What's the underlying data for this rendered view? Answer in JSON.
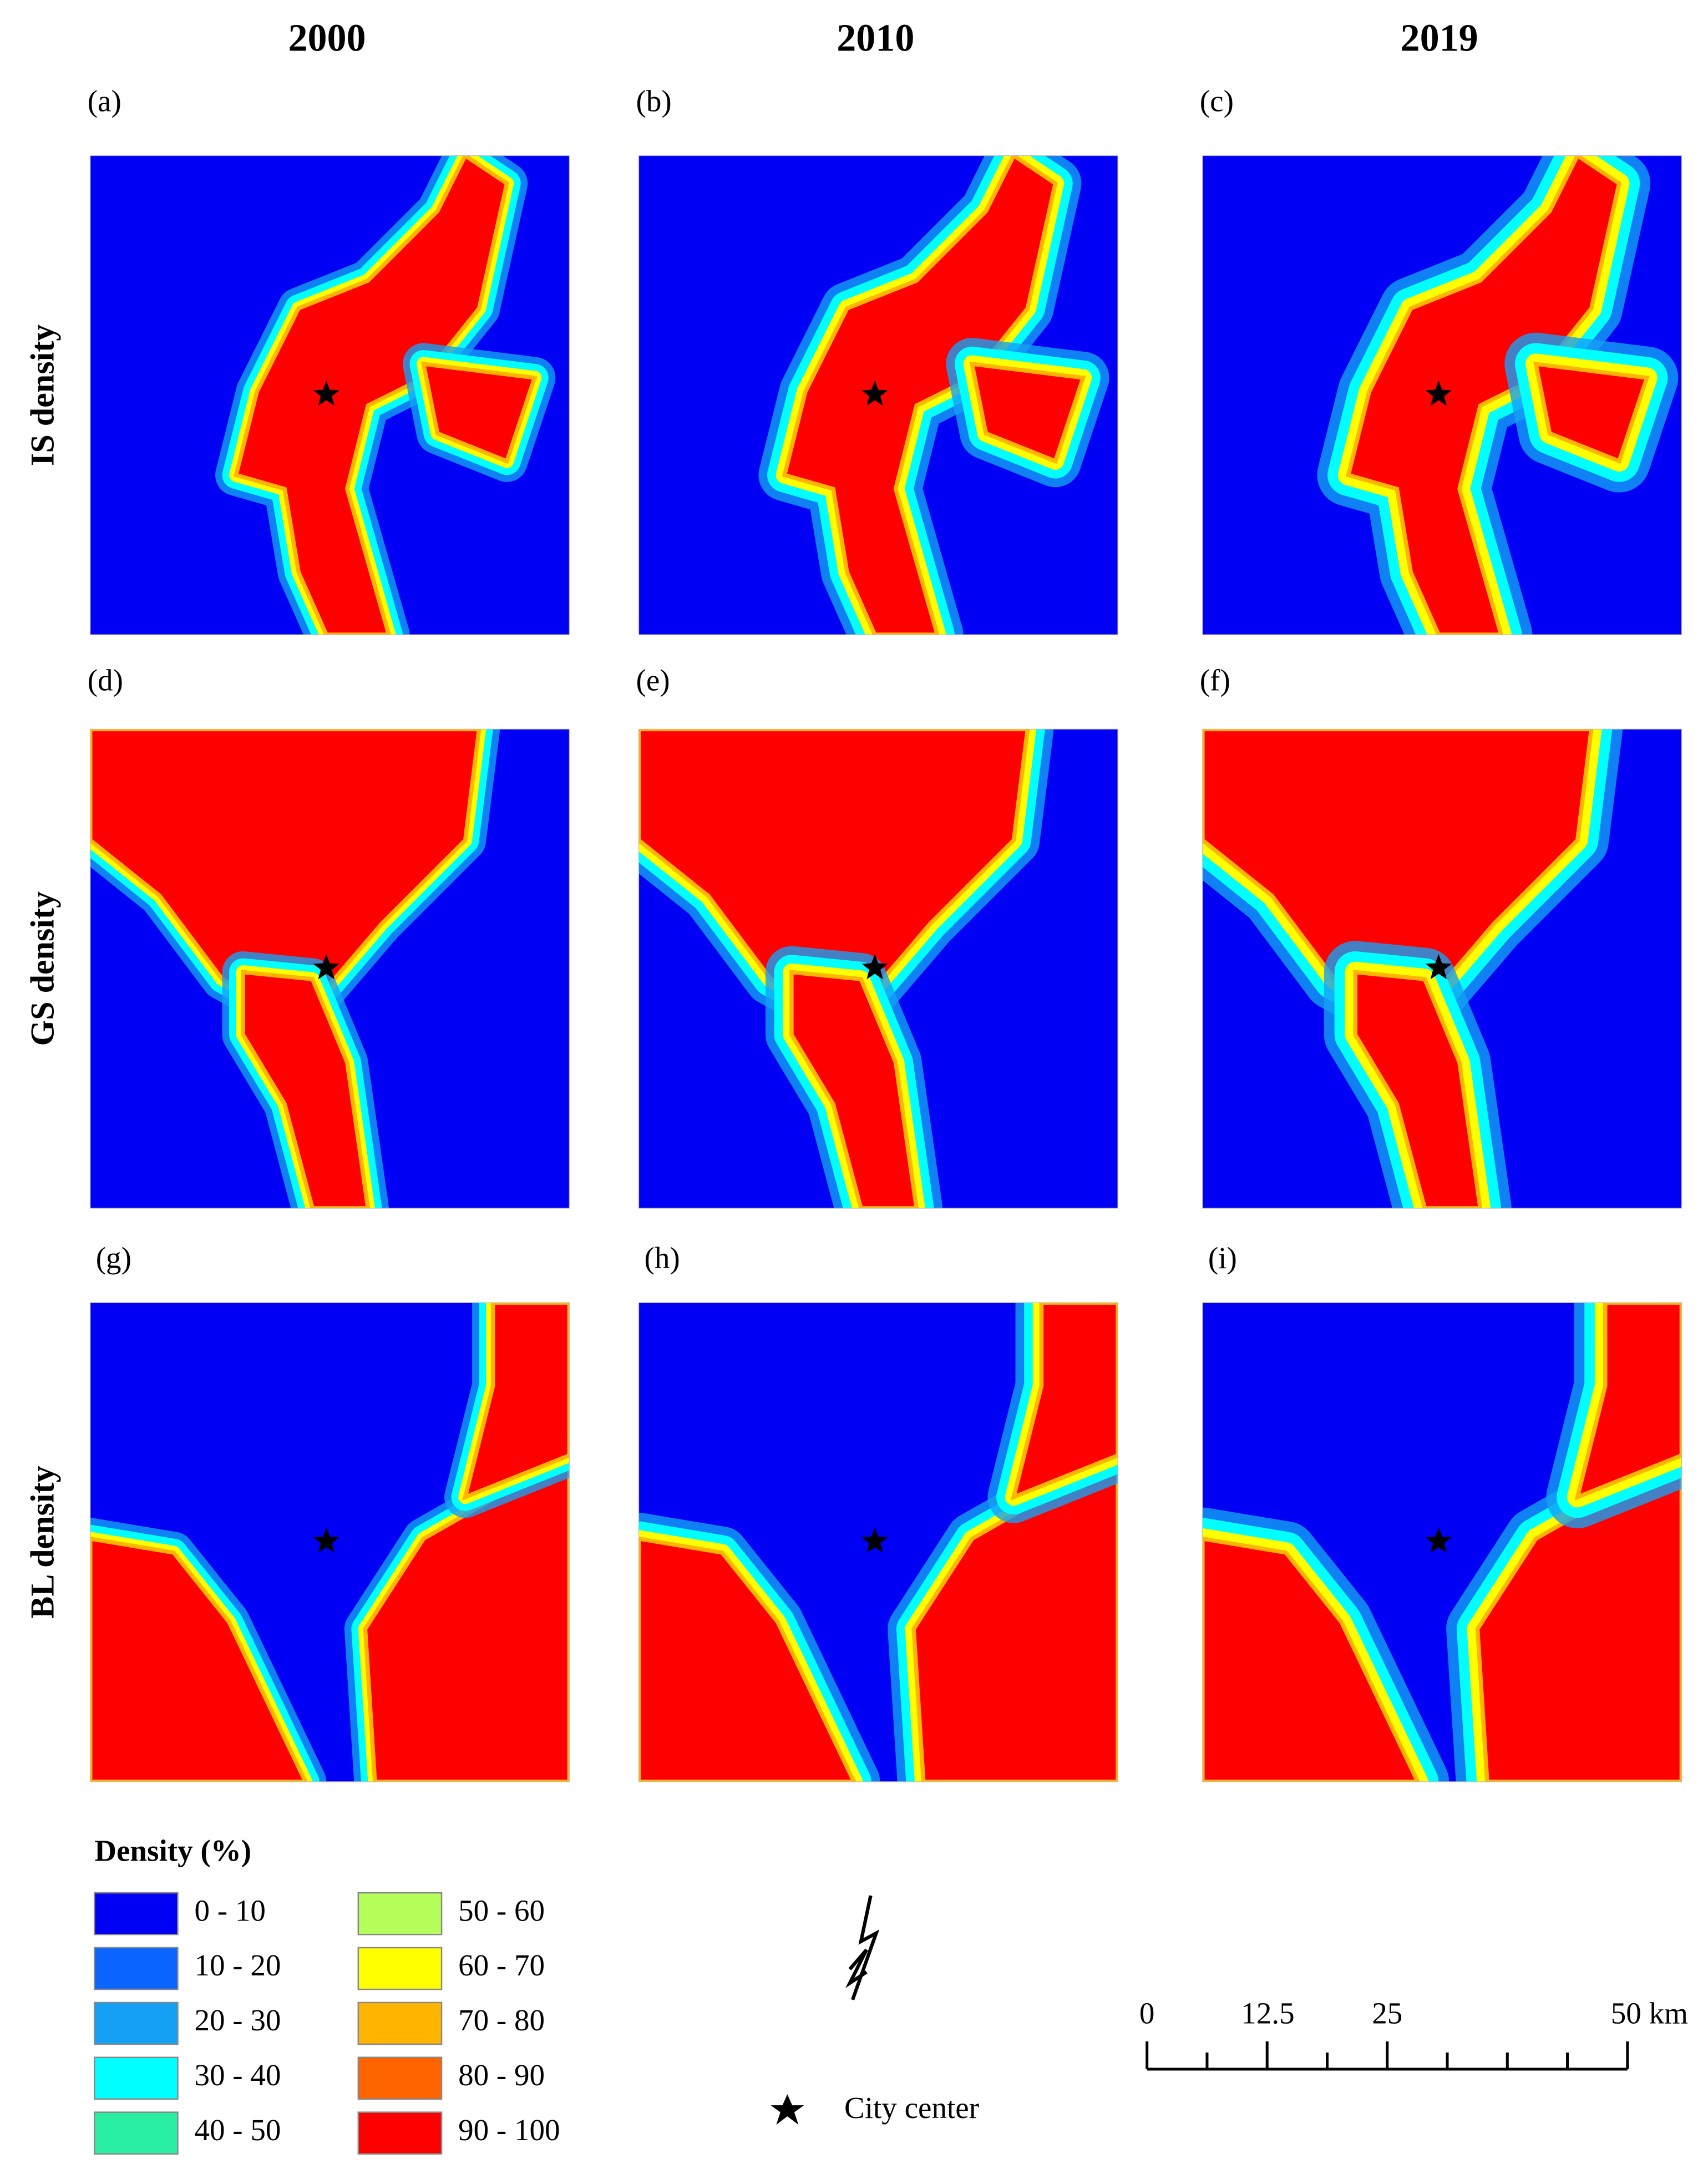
{
  "columns": [
    "2000",
    "2010",
    "2019"
  ],
  "rows": [
    {
      "label": "IS density",
      "panels": [
        "(a)",
        "(b)",
        "(c)"
      ]
    },
    {
      "label": "GS density",
      "panels": [
        "(d)",
        "(e)",
        "(f)"
      ]
    },
    {
      "label": "BL density",
      "panels": [
        "(g)",
        "(h)",
        "(i)"
      ]
    }
  ],
  "legend": {
    "title": "Density (%)",
    "items": [
      {
        "label": "0 - 10",
        "color": "#0000f5"
      },
      {
        "label": "10 - 20",
        "color": "#0a64ff"
      },
      {
        "label": "20 - 30",
        "color": "#14a0f5"
      },
      {
        "label": "30 - 40",
        "color": "#00ffff"
      },
      {
        "label": "40 - 50",
        "color": "#28f0a0"
      },
      {
        "label": "50 - 60",
        "color": "#b4ff5a"
      },
      {
        "label": "60 - 70",
        "color": "#ffff00"
      },
      {
        "label": "70 - 80",
        "color": "#ffb400"
      },
      {
        "label": "80 - 90",
        "color": "#ff6400"
      },
      {
        "label": "90 - 100",
        "color": "#ff0000"
      }
    ]
  },
  "city_center": "City center",
  "scale_bar": [
    "0",
    "12.5",
    "25",
    "50 km"
  ]
}
